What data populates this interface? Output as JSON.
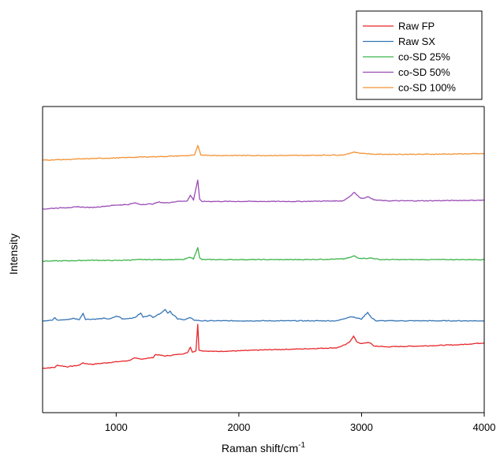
{
  "chart_data": {
    "type": "line",
    "title": "",
    "xlabel": "Raman shift/cm",
    "xlabel_superscript": "-1",
    "ylabel": "Intensity",
    "xlim": [
      400,
      4000
    ],
    "ylim": [
      0,
      10
    ],
    "x_ticks": [
      {
        "value": 1000,
        "label": "1000"
      },
      {
        "value": 2000,
        "label": "2000"
      },
      {
        "value": 3000,
        "label": "3000"
      },
      {
        "value": 4000,
        "label": "4000"
      }
    ],
    "y_ticks_shown": false,
    "grid": false,
    "legend_position": "top-right",
    "series": [
      {
        "name": "Raw FP",
        "color": "#e8262a",
        "baseline": 1.45,
        "slope": 0.35,
        "points": [
          [
            400,
            1.45
          ],
          [
            500,
            1.48
          ],
          [
            520,
            1.55
          ],
          [
            600,
            1.5
          ],
          [
            700,
            1.55
          ],
          [
            720,
            1.62
          ],
          [
            800,
            1.58
          ],
          [
            900,
            1.62
          ],
          [
            1000,
            1.66
          ],
          [
            1100,
            1.7
          ],
          [
            1150,
            1.78
          ],
          [
            1200,
            1.75
          ],
          [
            1300,
            1.8
          ],
          [
            1320,
            1.9
          ],
          [
            1400,
            1.85
          ],
          [
            1500,
            1.9
          ],
          [
            1580,
            1.95
          ],
          [
            1605,
            2.15
          ],
          [
            1620,
            1.98
          ],
          [
            1650,
            2.02
          ],
          [
            1665,
            2.88
          ],
          [
            1675,
            2.05
          ],
          [
            1700,
            2.02
          ],
          [
            1800,
            2.0
          ],
          [
            2000,
            2.02
          ],
          [
            2200,
            2.05
          ],
          [
            2500,
            2.08
          ],
          [
            2800,
            2.12
          ],
          [
            2870,
            2.22
          ],
          [
            2900,
            2.3
          ],
          [
            2935,
            2.5
          ],
          [
            2960,
            2.32
          ],
          [
            3000,
            2.25
          ],
          [
            3060,
            2.3
          ],
          [
            3100,
            2.18
          ],
          [
            3200,
            2.15
          ],
          [
            3500,
            2.18
          ],
          [
            3800,
            2.22
          ],
          [
            4000,
            2.28
          ]
        ]
      },
      {
        "name": "Raw SX",
        "color": "#3575b5",
        "baseline": 3.0,
        "points": [
          [
            400,
            3.0
          ],
          [
            480,
            3.02
          ],
          [
            500,
            3.1
          ],
          [
            520,
            3.02
          ],
          [
            600,
            3.04
          ],
          [
            650,
            3.08
          ],
          [
            700,
            3.04
          ],
          [
            730,
            3.25
          ],
          [
            750,
            3.05
          ],
          [
            850,
            3.06
          ],
          [
            900,
            3.08
          ],
          [
            950,
            3.06
          ],
          [
            1000,
            3.15
          ],
          [
            1030,
            3.12
          ],
          [
            1050,
            3.06
          ],
          [
            1100,
            3.08
          ],
          [
            1150,
            3.1
          ],
          [
            1200,
            3.25
          ],
          [
            1220,
            3.12
          ],
          [
            1270,
            3.18
          ],
          [
            1300,
            3.12
          ],
          [
            1340,
            3.2
          ],
          [
            1380,
            3.3
          ],
          [
            1400,
            3.38
          ],
          [
            1420,
            3.25
          ],
          [
            1440,
            3.32
          ],
          [
            1460,
            3.2
          ],
          [
            1480,
            3.15
          ],
          [
            1500,
            3.06
          ],
          [
            1560,
            3.04
          ],
          [
            1600,
            3.1
          ],
          [
            1640,
            3.02
          ],
          [
            1700,
            3.0
          ],
          [
            2000,
            3.0
          ],
          [
            2500,
            3.0
          ],
          [
            2800,
            3.0
          ],
          [
            2880,
            3.1
          ],
          [
            2920,
            3.14
          ],
          [
            2950,
            3.1
          ],
          [
            3000,
            3.06
          ],
          [
            3050,
            3.28
          ],
          [
            3080,
            3.1
          ],
          [
            3120,
            3.0
          ],
          [
            3500,
            3.0
          ],
          [
            4000,
            3.0
          ]
        ]
      },
      {
        "name": "co-SD 25%",
        "color": "#3cb44a",
        "baseline": 4.95,
        "points": [
          [
            400,
            4.95
          ],
          [
            600,
            4.96
          ],
          [
            800,
            4.98
          ],
          [
            1000,
            4.97
          ],
          [
            1200,
            5.0
          ],
          [
            1400,
            5.0
          ],
          [
            1550,
            5.0
          ],
          [
            1605,
            5.08
          ],
          [
            1630,
            5.02
          ],
          [
            1665,
            5.4
          ],
          [
            1680,
            5.05
          ],
          [
            1700,
            5.0
          ],
          [
            2000,
            5.0
          ],
          [
            2500,
            5.0
          ],
          [
            2850,
            5.02
          ],
          [
            2900,
            5.06
          ],
          [
            2940,
            5.12
          ],
          [
            2970,
            5.05
          ],
          [
            3050,
            5.04
          ],
          [
            3080,
            5.05
          ],
          [
            3150,
            5.0
          ],
          [
            3500,
            5.0
          ],
          [
            4000,
            5.0
          ]
        ]
      },
      {
        "name": "co-SD 50%",
        "color": "#9a4bb5",
        "baseline": 6.65,
        "points": [
          [
            400,
            6.65
          ],
          [
            500,
            6.68
          ],
          [
            600,
            6.7
          ],
          [
            700,
            6.72
          ],
          [
            800,
            6.7
          ],
          [
            900,
            6.74
          ],
          [
            1000,
            6.78
          ],
          [
            1100,
            6.8
          ],
          [
            1150,
            6.85
          ],
          [
            1200,
            6.8
          ],
          [
            1300,
            6.82
          ],
          [
            1350,
            6.88
          ],
          [
            1400,
            6.85
          ],
          [
            1500,
            6.9
          ],
          [
            1580,
            6.92
          ],
          [
            1605,
            7.1
          ],
          [
            1630,
            6.95
          ],
          [
            1665,
            7.6
          ],
          [
            1680,
            6.96
          ],
          [
            1700,
            6.9
          ],
          [
            2000,
            6.9
          ],
          [
            2500,
            6.9
          ],
          [
            2850,
            6.92
          ],
          [
            2900,
            7.05
          ],
          [
            2940,
            7.2
          ],
          [
            2970,
            7.08
          ],
          [
            3000,
            7.0
          ],
          [
            3060,
            7.05
          ],
          [
            3100,
            6.95
          ],
          [
            3200,
            6.92
          ],
          [
            3500,
            6.92
          ],
          [
            4000,
            6.94
          ]
        ]
      },
      {
        "name": "co-SD 100%",
        "color": "#f39233",
        "baseline": 8.25,
        "points": [
          [
            400,
            8.25
          ],
          [
            600,
            8.27
          ],
          [
            800,
            8.3
          ],
          [
            1000,
            8.32
          ],
          [
            1200,
            8.35
          ],
          [
            1400,
            8.37
          ],
          [
            1600,
            8.4
          ],
          [
            1640,
            8.42
          ],
          [
            1665,
            8.72
          ],
          [
            1690,
            8.42
          ],
          [
            1800,
            8.4
          ],
          [
            2000,
            8.4
          ],
          [
            2500,
            8.4
          ],
          [
            2850,
            8.42
          ],
          [
            2900,
            8.46
          ],
          [
            2940,
            8.52
          ],
          [
            2980,
            8.48
          ],
          [
            3050,
            8.46
          ],
          [
            3100,
            8.44
          ],
          [
            3500,
            8.44
          ],
          [
            4000,
            8.46
          ]
        ]
      }
    ]
  }
}
